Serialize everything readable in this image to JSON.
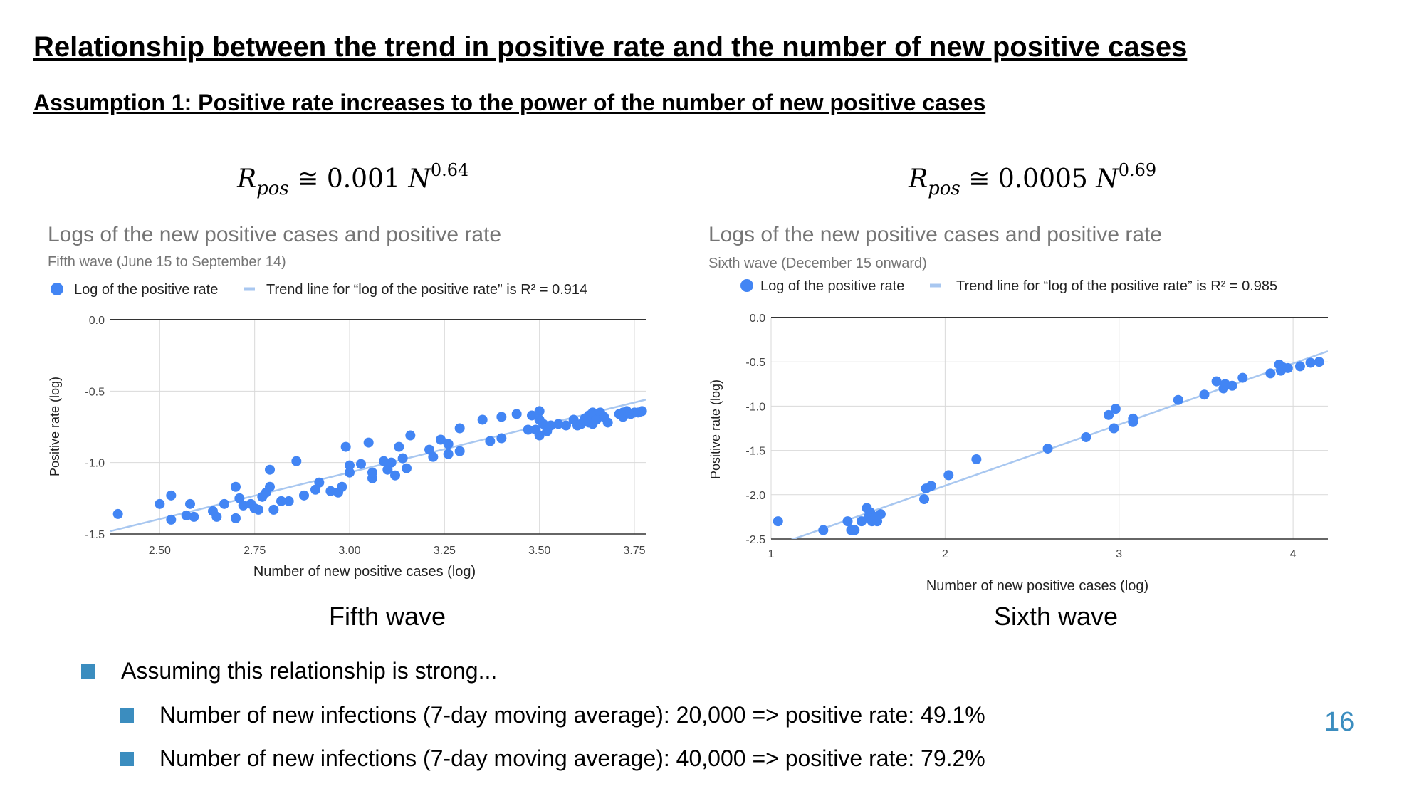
{
  "slide": {
    "title": "Relationship between the trend in positive rate and the number of new positive cases",
    "subtitle": "Assumption 1: Positive rate increases to the power of the number of new positive cases",
    "page_number": "16"
  },
  "formulas": [
    {
      "lhs": "R",
      "sub": "pos",
      "op": " ≅ ",
      "coef": "0.001",
      "var": "N",
      "exp": "0.64"
    },
    {
      "lhs": "R",
      "sub": "pos",
      "op": " ≅ ",
      "coef": "0.0005",
      "var": "N",
      "exp": "0.69"
    }
  ],
  "captions": [
    "Fifth wave",
    "Sixth wave"
  ],
  "bullets": {
    "main": "Assuming this relationship is strong...",
    "sub": [
      "Number of new infections (7-day moving average): 20,000 => positive rate: 49.1%",
      "Number of new infections (7-day moving average): 40,000 => positive rate: 79.2%"
    ]
  },
  "colors": {
    "points": "#4285f4",
    "trend": "#a8c7f0",
    "grid": "#d9d9d9",
    "axis": "#333333",
    "accent": "#3b8dbf"
  },
  "chart_data": [
    {
      "type": "scatter",
      "title": "Logs of the new positive cases and positive rate",
      "subtitle": "Fifth wave (June 15 to September 14)",
      "xlabel": "Number of new positive cases (log)",
      "ylabel": "Positive rate (log)",
      "xlim": [
        2.37,
        3.78
      ],
      "ylim": [
        -1.5,
        0.0
      ],
      "xticks": [
        "2.50",
        "2.75",
        "3.00",
        "3.25",
        "3.50",
        "3.75"
      ],
      "xtick_values": [
        2.5,
        2.75,
        3.0,
        3.25,
        3.5,
        3.75
      ],
      "yticks": [
        "0.0",
        "-0.5",
        "-1.0",
        "-1.5"
      ],
      "ytick_values": [
        0.0,
        -0.5,
        -1.0,
        -1.5
      ],
      "grid": true,
      "legend_position": "top",
      "legend": [
        "Log of the positive rate",
        "Trend line for “log of the positive rate” is R² = 0.914"
      ],
      "trend_line": {
        "x": [
          2.37,
          3.78
        ],
        "y": [
          -1.48,
          -0.56
        ]
      },
      "series": [
        {
          "name": "Log of the positive rate",
          "points": [
            [
              2.39,
              -1.36
            ],
            [
              2.5,
              -1.29
            ],
            [
              2.53,
              -1.4
            ],
            [
              2.53,
              -1.23
            ],
            [
              2.57,
              -1.37
            ],
            [
              2.58,
              -1.29
            ],
            [
              2.59,
              -1.38
            ],
            [
              2.64,
              -1.34
            ],
            [
              2.65,
              -1.38
            ],
            [
              2.67,
              -1.29
            ],
            [
              2.7,
              -1.39
            ],
            [
              2.7,
              -1.17
            ],
            [
              2.71,
              -1.25
            ],
            [
              2.72,
              -1.3
            ],
            [
              2.74,
              -1.29
            ],
            [
              2.75,
              -1.32
            ],
            [
              2.76,
              -1.33
            ],
            [
              2.77,
              -1.24
            ],
            [
              2.78,
              -1.21
            ],
            [
              2.79,
              -1.17
            ],
            [
              2.79,
              -1.05
            ],
            [
              2.8,
              -1.33
            ],
            [
              2.82,
              -1.27
            ],
            [
              2.84,
              -1.27
            ],
            [
              2.86,
              -0.99
            ],
            [
              2.88,
              -1.23
            ],
            [
              2.91,
              -1.19
            ],
            [
              2.92,
              -1.14
            ],
            [
              2.95,
              -1.2
            ],
            [
              2.97,
              -1.21
            ],
            [
              2.98,
              -1.17
            ],
            [
              2.99,
              -0.89
            ],
            [
              3.0,
              -1.02
            ],
            [
              3.0,
              -1.07
            ],
            [
              3.03,
              -1.01
            ],
            [
              3.05,
              -0.86
            ],
            [
              3.06,
              -1.11
            ],
            [
              3.06,
              -1.07
            ],
            [
              3.09,
              -0.99
            ],
            [
              3.1,
              -1.05
            ],
            [
              3.11,
              -1.0
            ],
            [
              3.12,
              -1.09
            ],
            [
              3.13,
              -0.89
            ],
            [
              3.14,
              -0.97
            ],
            [
              3.15,
              -1.04
            ],
            [
              3.16,
              -0.81
            ],
            [
              3.21,
              -0.91
            ],
            [
              3.22,
              -0.96
            ],
            [
              3.24,
              -0.84
            ],
            [
              3.26,
              -0.87
            ],
            [
              3.26,
              -0.94
            ],
            [
              3.29,
              -0.92
            ],
            [
              3.29,
              -0.76
            ],
            [
              3.35,
              -0.7
            ],
            [
              3.37,
              -0.85
            ],
            [
              3.4,
              -0.83
            ],
            [
              3.4,
              -0.68
            ],
            [
              3.44,
              -0.66
            ],
            [
              3.47,
              -0.77
            ],
            [
              3.48,
              -0.67
            ],
            [
              3.49,
              -0.77
            ],
            [
              3.5,
              -0.81
            ],
            [
              3.5,
              -0.64
            ],
            [
              3.5,
              -0.7
            ],
            [
              3.51,
              -0.73
            ],
            [
              3.52,
              -0.78
            ],
            [
              3.53,
              -0.74
            ],
            [
              3.55,
              -0.73
            ],
            [
              3.57,
              -0.74
            ],
            [
              3.59,
              -0.7
            ],
            [
              3.6,
              -0.74
            ],
            [
              3.61,
              -0.73
            ],
            [
              3.62,
              -0.69
            ],
            [
              3.63,
              -0.67
            ],
            [
              3.63,
              -0.72
            ],
            [
              3.64,
              -0.73
            ],
            [
              3.64,
              -0.65
            ],
            [
              3.65,
              -0.7
            ],
            [
              3.66,
              -0.65
            ],
            [
              3.67,
              -0.68
            ],
            [
              3.68,
              -0.72
            ],
            [
              3.71,
              -0.66
            ],
            [
              3.72,
              -0.65
            ],
            [
              3.72,
              -0.68
            ],
            [
              3.73,
              -0.64
            ],
            [
              3.74,
              -0.66
            ],
            [
              3.75,
              -0.65
            ],
            [
              3.76,
              -0.65
            ],
            [
              3.77,
              -0.64
            ]
          ]
        }
      ]
    },
    {
      "type": "scatter",
      "title": "Logs of the new positive cases and positive rate",
      "subtitle": "Sixth wave (December 15 onward)",
      "xlabel": "Number of new positive cases (log)",
      "ylabel": "Positive rate (log)",
      "xlim": [
        1.0,
        4.2
      ],
      "ylim": [
        -2.5,
        0.0
      ],
      "xticks": [
        "1",
        "2",
        "3",
        "4"
      ],
      "xtick_values": [
        1,
        2,
        3,
        4
      ],
      "yticks": [
        "0.0",
        "-0.5",
        "-1.0",
        "-1.5",
        "-2.0",
        "-2.5"
      ],
      "ytick_values": [
        0.0,
        -0.5,
        -1.0,
        -1.5,
        -2.0,
        -2.5
      ],
      "grid": true,
      "legend_position": "top",
      "legend": [
        "Log of the positive rate",
        "Trend line for “log of the positive rate” is R² = 0.985"
      ],
      "trend_line": {
        "x": [
          1.1,
          4.2
        ],
        "y": [
          -2.52,
          -0.38
        ]
      },
      "series": [
        {
          "name": "Log of the positive rate",
          "points": [
            [
              1.04,
              -2.3
            ],
            [
              1.3,
              -2.4
            ],
            [
              1.44,
              -2.3
            ],
            [
              1.46,
              -2.4
            ],
            [
              1.48,
              -2.4
            ],
            [
              1.52,
              -2.3
            ],
            [
              1.55,
              -2.15
            ],
            [
              1.56,
              -2.25
            ],
            [
              1.57,
              -2.2
            ],
            [
              1.58,
              -2.3
            ],
            [
              1.6,
              -2.25
            ],
            [
              1.61,
              -2.3
            ],
            [
              1.63,
              -2.22
            ],
            [
              1.88,
              -2.05
            ],
            [
              1.89,
              -1.93
            ],
            [
              1.92,
              -1.9
            ],
            [
              2.02,
              -1.78
            ],
            [
              2.18,
              -1.6
            ],
            [
              2.59,
              -1.48
            ],
            [
              2.81,
              -1.35
            ],
            [
              2.94,
              -1.1
            ],
            [
              2.97,
              -1.25
            ],
            [
              2.98,
              -1.03
            ],
            [
              3.08,
              -1.18
            ],
            [
              3.08,
              -1.14
            ],
            [
              3.34,
              -0.93
            ],
            [
              3.49,
              -0.87
            ],
            [
              3.56,
              -0.72
            ],
            [
              3.6,
              -0.8
            ],
            [
              3.61,
              -0.75
            ],
            [
              3.65,
              -0.77
            ],
            [
              3.71,
              -0.68
            ],
            [
              3.87,
              -0.63
            ],
            [
              3.92,
              -0.53
            ],
            [
              3.93,
              -0.6
            ],
            [
              3.94,
              -0.56
            ],
            [
              3.97,
              -0.57
            ],
            [
              4.04,
              -0.55
            ],
            [
              4.1,
              -0.51
            ],
            [
              4.15,
              -0.5
            ]
          ]
        }
      ]
    }
  ]
}
